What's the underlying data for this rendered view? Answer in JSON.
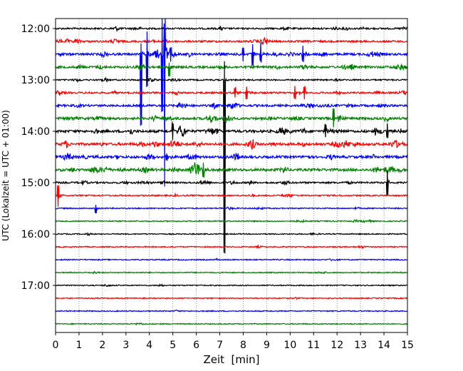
{
  "chart_data": {
    "type": "line",
    "title": "",
    "xlabel": "Zeit  [min]",
    "ylabel": "UTC (Lokalzeit = UTC + 01:00)",
    "xlim": [
      0,
      15
    ],
    "x_ticks": [
      0,
      1,
      2,
      3,
      4,
      5,
      6,
      7,
      8,
      9,
      10,
      11,
      12,
      13,
      14,
      15
    ],
    "y_tick_labels": [
      "12:00",
      "13:00",
      "14:00",
      "15:00",
      "16:00",
      "17:00"
    ],
    "grid": "vertical dotted lines at each minute",
    "trace_interval_minutes": 15,
    "trace_colors": [
      "#000000",
      "#ff0000",
      "#0000ff",
      "#008000"
    ],
    "traces": [
      {
        "start": "12:00",
        "activity": 0.35
      },
      {
        "start": "12:15",
        "activity": 0.45
      },
      {
        "start": "12:30",
        "activity": 0.6
      },
      {
        "start": "12:45",
        "activity": 0.6
      },
      {
        "start": "13:00",
        "activity": 0.25
      },
      {
        "start": "13:15",
        "activity": 0.35
      },
      {
        "start": "13:30",
        "activity": 0.55
      },
      {
        "start": "13:45",
        "activity": 0.7
      },
      {
        "start": "14:00",
        "activity": 0.75
      },
      {
        "start": "14:15",
        "activity": 0.75
      },
      {
        "start": "14:30",
        "activity": 0.7
      },
      {
        "start": "14:45",
        "activity": 0.8
      },
      {
        "start": "15:00",
        "activity": 0.4
      },
      {
        "start": "15:15",
        "activity": 0.2
      },
      {
        "start": "15:30",
        "activity": 0.12
      },
      {
        "start": "15:45",
        "activity": 0.12
      },
      {
        "start": "16:00",
        "activity": 0.08
      },
      {
        "start": "16:15",
        "activity": 0.08
      },
      {
        "start": "16:30",
        "activity": 0.08
      },
      {
        "start": "16:45",
        "activity": 0.08
      },
      {
        "start": "17:00",
        "activity": 0.08
      },
      {
        "start": "17:15",
        "activity": 0.06
      },
      {
        "start": "17:30",
        "activity": 0.06
      },
      {
        "start": "17:45",
        "activity": 0.06
      }
    ],
    "events": [
      {
        "trace": "12:30",
        "minute": 3.65,
        "up": 0.9,
        "down": 5.5,
        "decay": 0.12
      },
      {
        "trace": "12:30",
        "minute": 3.9,
        "up": 1.8,
        "down": 2.5,
        "decay": 0.12
      },
      {
        "trace": "12:30",
        "minute": 4.55,
        "up": 3.0,
        "down": 4.5,
        "decay": 0.12
      },
      {
        "trace": "12:30",
        "minute": 4.65,
        "up": 2.8,
        "down": 10.0,
        "decay": 0.2
      },
      {
        "trace": "12:30",
        "minute": 4.9,
        "up": 0.5,
        "down": 0.8,
        "decay": 0.25
      },
      {
        "trace": "12:30",
        "minute": 8.0,
        "up": 0.6,
        "down": 0.6,
        "decay": 0.2
      },
      {
        "trace": "12:30",
        "minute": 8.4,
        "up": 0.8,
        "down": 0.9,
        "decay": 0.15
      },
      {
        "trace": "12:30",
        "minute": 8.75,
        "up": 1.0,
        "down": 0.6,
        "decay": 0.12
      },
      {
        "trace": "12:30",
        "minute": 10.55,
        "up": 0.7,
        "down": 0.6,
        "decay": 0.12
      },
      {
        "trace": "12:45",
        "minute": 4.85,
        "up": 0.4,
        "down": 0.7,
        "decay": 0.2
      },
      {
        "trace": "13:00",
        "minute": 7.2,
        "up": 1.4,
        "down": 13.5,
        "decay": 0.05
      },
      {
        "trace": "13:15",
        "minute": 7.65,
        "up": 0.4,
        "down": 0.4,
        "decay": 0.15
      },
      {
        "trace": "13:15",
        "minute": 8.15,
        "up": 0.5,
        "down": 0.5,
        "decay": 0.15
      },
      {
        "trace": "13:15",
        "minute": 10.2,
        "up": 0.5,
        "down": 0.5,
        "decay": 0.2
      },
      {
        "trace": "13:15",
        "minute": 10.6,
        "up": 0.5,
        "down": 0.5,
        "decay": 0.2
      },
      {
        "trace": "13:45",
        "minute": 11.85,
        "up": 0.7,
        "down": 0.6,
        "decay": 0.2
      },
      {
        "trace": "14:00",
        "minute": 5.0,
        "up": 0.7,
        "down": 0.6,
        "decay": 0.15
      },
      {
        "trace": "14:00",
        "minute": 11.5,
        "up": 0.5,
        "down": 0.5,
        "decay": 0.4
      },
      {
        "trace": "14:00",
        "minute": 14.15,
        "up": 0.6,
        "down": 0.6,
        "decay": 0.1
      },
      {
        "trace": "14:45",
        "minute": 6.3,
        "up": 0.5,
        "down": 0.5,
        "decay": 0.5
      },
      {
        "trace": "15:00",
        "minute": 14.15,
        "up": 1.0,
        "down": 1.0,
        "decay": 0.1
      },
      {
        "trace": "15:15",
        "minute": 0.1,
        "up": 0.8,
        "down": 0.9,
        "decay": 0.15
      },
      {
        "trace": "15:30",
        "minute": 1.72,
        "up": 0.3,
        "down": 0.4,
        "decay": 0.1
      }
    ]
  }
}
